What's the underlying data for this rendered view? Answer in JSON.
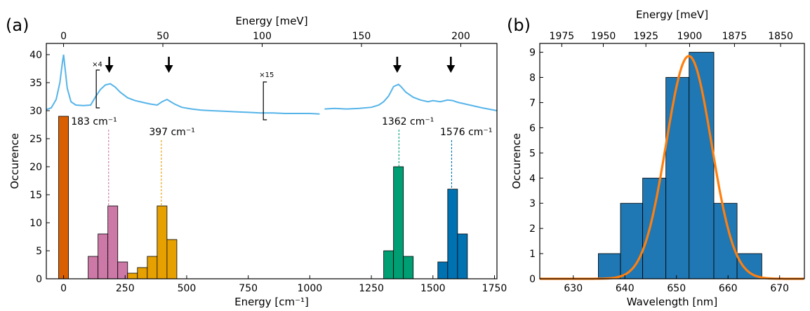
{
  "chart_data": [
    {
      "panel_label": "(a)",
      "type": "bar",
      "xlabel": "Energy [cm⁻¹]",
      "ylabel": "Occurence",
      "xlim": [
        -70,
        1760
      ],
      "ylim": [
        0,
        42
      ],
      "x_ticks": [
        0,
        250,
        500,
        750,
        1000,
        1250,
        1500,
        1750
      ],
      "y_ticks": [
        0,
        5,
        10,
        15,
        20,
        25,
        30,
        35,
        40
      ],
      "top_axis": {
        "label": "Energy [meV]",
        "ticks": [
          0,
          50,
          100,
          150,
          200
        ]
      },
      "bin_width": 40,
      "series": [
        {
          "color": "#d95f02",
          "centers": [
            0
          ],
          "values": [
            29
          ]
        },
        {
          "color": "#cc79a7",
          "centers": [
            120,
            160,
            200,
            240
          ],
          "values": [
            4,
            8,
            13,
            3
          ]
        },
        {
          "color": "#e6a000",
          "centers": [
            280,
            320,
            360,
            400,
            440
          ],
          "values": [
            1,
            2,
            4,
            13,
            7
          ]
        },
        {
          "color": "#009e73",
          "centers": [
            1320,
            1360,
            1400
          ],
          "values": [
            5,
            20,
            4
          ]
        },
        {
          "color": "#0072b2",
          "centers": [
            1540,
            1580,
            1620
          ],
          "values": [
            3,
            16,
            8
          ]
        }
      ],
      "peak_markers": [
        {
          "label": "183 cm⁻¹",
          "x": 183,
          "color": "#cc79a7"
        },
        {
          "label": "397 cm⁻¹",
          "x": 397,
          "color": "#e6a000"
        },
        {
          "label": "1362 cm⁻¹",
          "x": 1362,
          "color": "#009e73"
        },
        {
          "label": "1576 cm⁻¹",
          "x": 1576,
          "color": "#0072b2"
        }
      ],
      "spectrum": {
        "color": "#56b4e9",
        "x": [
          -70,
          -50,
          -30,
          -15,
          -5,
          0,
          5,
          15,
          30,
          50,
          80,
          110,
          130,
          150,
          170,
          190,
          210,
          230,
          260,
          290,
          320,
          350,
          380,
          400,
          420,
          450,
          480,
          520,
          560,
          600,
          650,
          700,
          750,
          800,
          850,
          900,
          950,
          1000,
          1040,
          1060,
          1100,
          1150,
          1200,
          1250,
          1280,
          1300,
          1320,
          1340,
          1360,
          1370,
          1390,
          1420,
          1450,
          1480,
          1500,
          1530,
          1560,
          1580,
          1600,
          1650,
          1700,
          1760
        ],
        "y": [
          30.2,
          30.5,
          32.0,
          35.0,
          38.5,
          40.0,
          38.0,
          34.0,
          31.6,
          31.0,
          30.9,
          31.0,
          32.5,
          33.8,
          34.6,
          34.8,
          34.2,
          33.3,
          32.3,
          31.8,
          31.5,
          31.2,
          31.0,
          31.6,
          32.0,
          31.2,
          30.6,
          30.3,
          30.1,
          30.0,
          29.9,
          29.8,
          29.7,
          29.6,
          29.6,
          29.5,
          29.5,
          29.5,
          29.4,
          30.3,
          30.4,
          30.3,
          30.4,
          30.6,
          31.0,
          31.6,
          32.6,
          34.3,
          34.7,
          34.3,
          33.3,
          32.4,
          31.9,
          31.6,
          31.8,
          31.6,
          31.9,
          31.8,
          31.5,
          31.0,
          30.5,
          30.0
        ]
      },
      "arrows_meV": [
        23,
        53,
        168,
        195
      ],
      "scale_annotations": [
        {
          "label": "×4",
          "x_cm": 110
        },
        {
          "label": "×15",
          "x_cm": 800
        }
      ]
    },
    {
      "panel_label": "(b)",
      "type": "bar",
      "xlabel": "Wavelength [nm]",
      "ylabel": "Occurence",
      "xlim": [
        623.5,
        674.8
      ],
      "ylim": [
        0,
        9.35
      ],
      "x_ticks": [
        630,
        640,
        650,
        660,
        670
      ],
      "y_ticks": [
        0,
        1,
        2,
        3,
        4,
        5,
        6,
        7,
        8,
        9
      ],
      "top_axis": {
        "label": "Energy [meV]",
        "ticks": [
          1975,
          1950,
          1925,
          1900,
          1875,
          1850
        ]
      },
      "bins": [
        {
          "left": 634.85,
          "right": 639.15,
          "value": 1
        },
        {
          "left": 639.15,
          "right": 643.45,
          "value": 3
        },
        {
          "left": 643.45,
          "right": 647.95,
          "value": 4
        },
        {
          "left": 647.95,
          "right": 652.45,
          "value": 8
        },
        {
          "left": 652.45,
          "right": 657.25,
          "value": 9
        },
        {
          "left": 657.25,
          "right": 661.75,
          "value": 3
        },
        {
          "left": 661.75,
          "right": 666.55,
          "value": 1
        }
      ],
      "bar_color": "#1f77b4",
      "fit": {
        "type": "gaussian",
        "color": "#ff7f0e",
        "amplitude": 8.85,
        "center": 652.4,
        "sigma": 4.4
      }
    }
  ]
}
